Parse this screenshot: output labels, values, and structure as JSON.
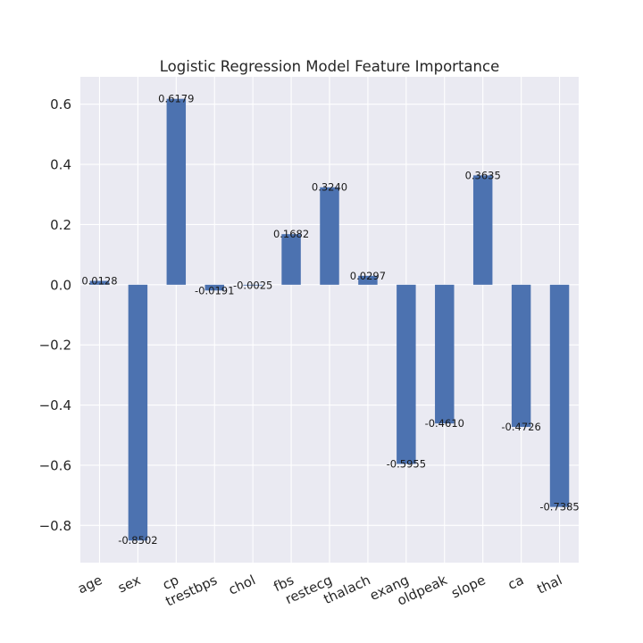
{
  "chart_data": {
    "type": "bar",
    "title": "Logistic Regression Model Feature Importance",
    "xlabel": "",
    "ylabel": "",
    "categories": [
      "age",
      "sex",
      "cp",
      "trestbps",
      "chol",
      "fbs",
      "restecg",
      "thalach",
      "exang",
      "oldpeak",
      "slope",
      "ca",
      "thal"
    ],
    "values": [
      0.0128,
      -0.8502,
      0.6179,
      -0.0191,
      -0.0025,
      0.1682,
      0.324,
      0.0297,
      -0.5955,
      -0.461,
      0.3635,
      -0.4726,
      -0.7385
    ],
    "value_labels": [
      "0.0128",
      "-0.8502",
      "0.6179",
      "-0.0191",
      "-0.0025",
      "0.1682",
      "0.3240",
      "0.0297",
      "-0.5955",
      "-0.4610",
      "0.3635",
      "-0.4726",
      "-0.7385"
    ],
    "yticks": [
      0.6,
      0.4,
      0.2,
      0.0,
      -0.2,
      -0.4,
      -0.6,
      -0.8
    ],
    "ytick_labels": [
      "0.6",
      "0.4",
      "0.2",
      "0.0",
      "−0.2",
      "−0.4",
      "−0.6",
      "−0.8"
    ],
    "ylim": [
      -0.9237,
      0.6912
    ],
    "grid": true,
    "colors": {
      "bar": "#4c72b0",
      "plot_background": "#eaeaf2",
      "grid": "#ffffff",
      "text": "#262626"
    }
  }
}
